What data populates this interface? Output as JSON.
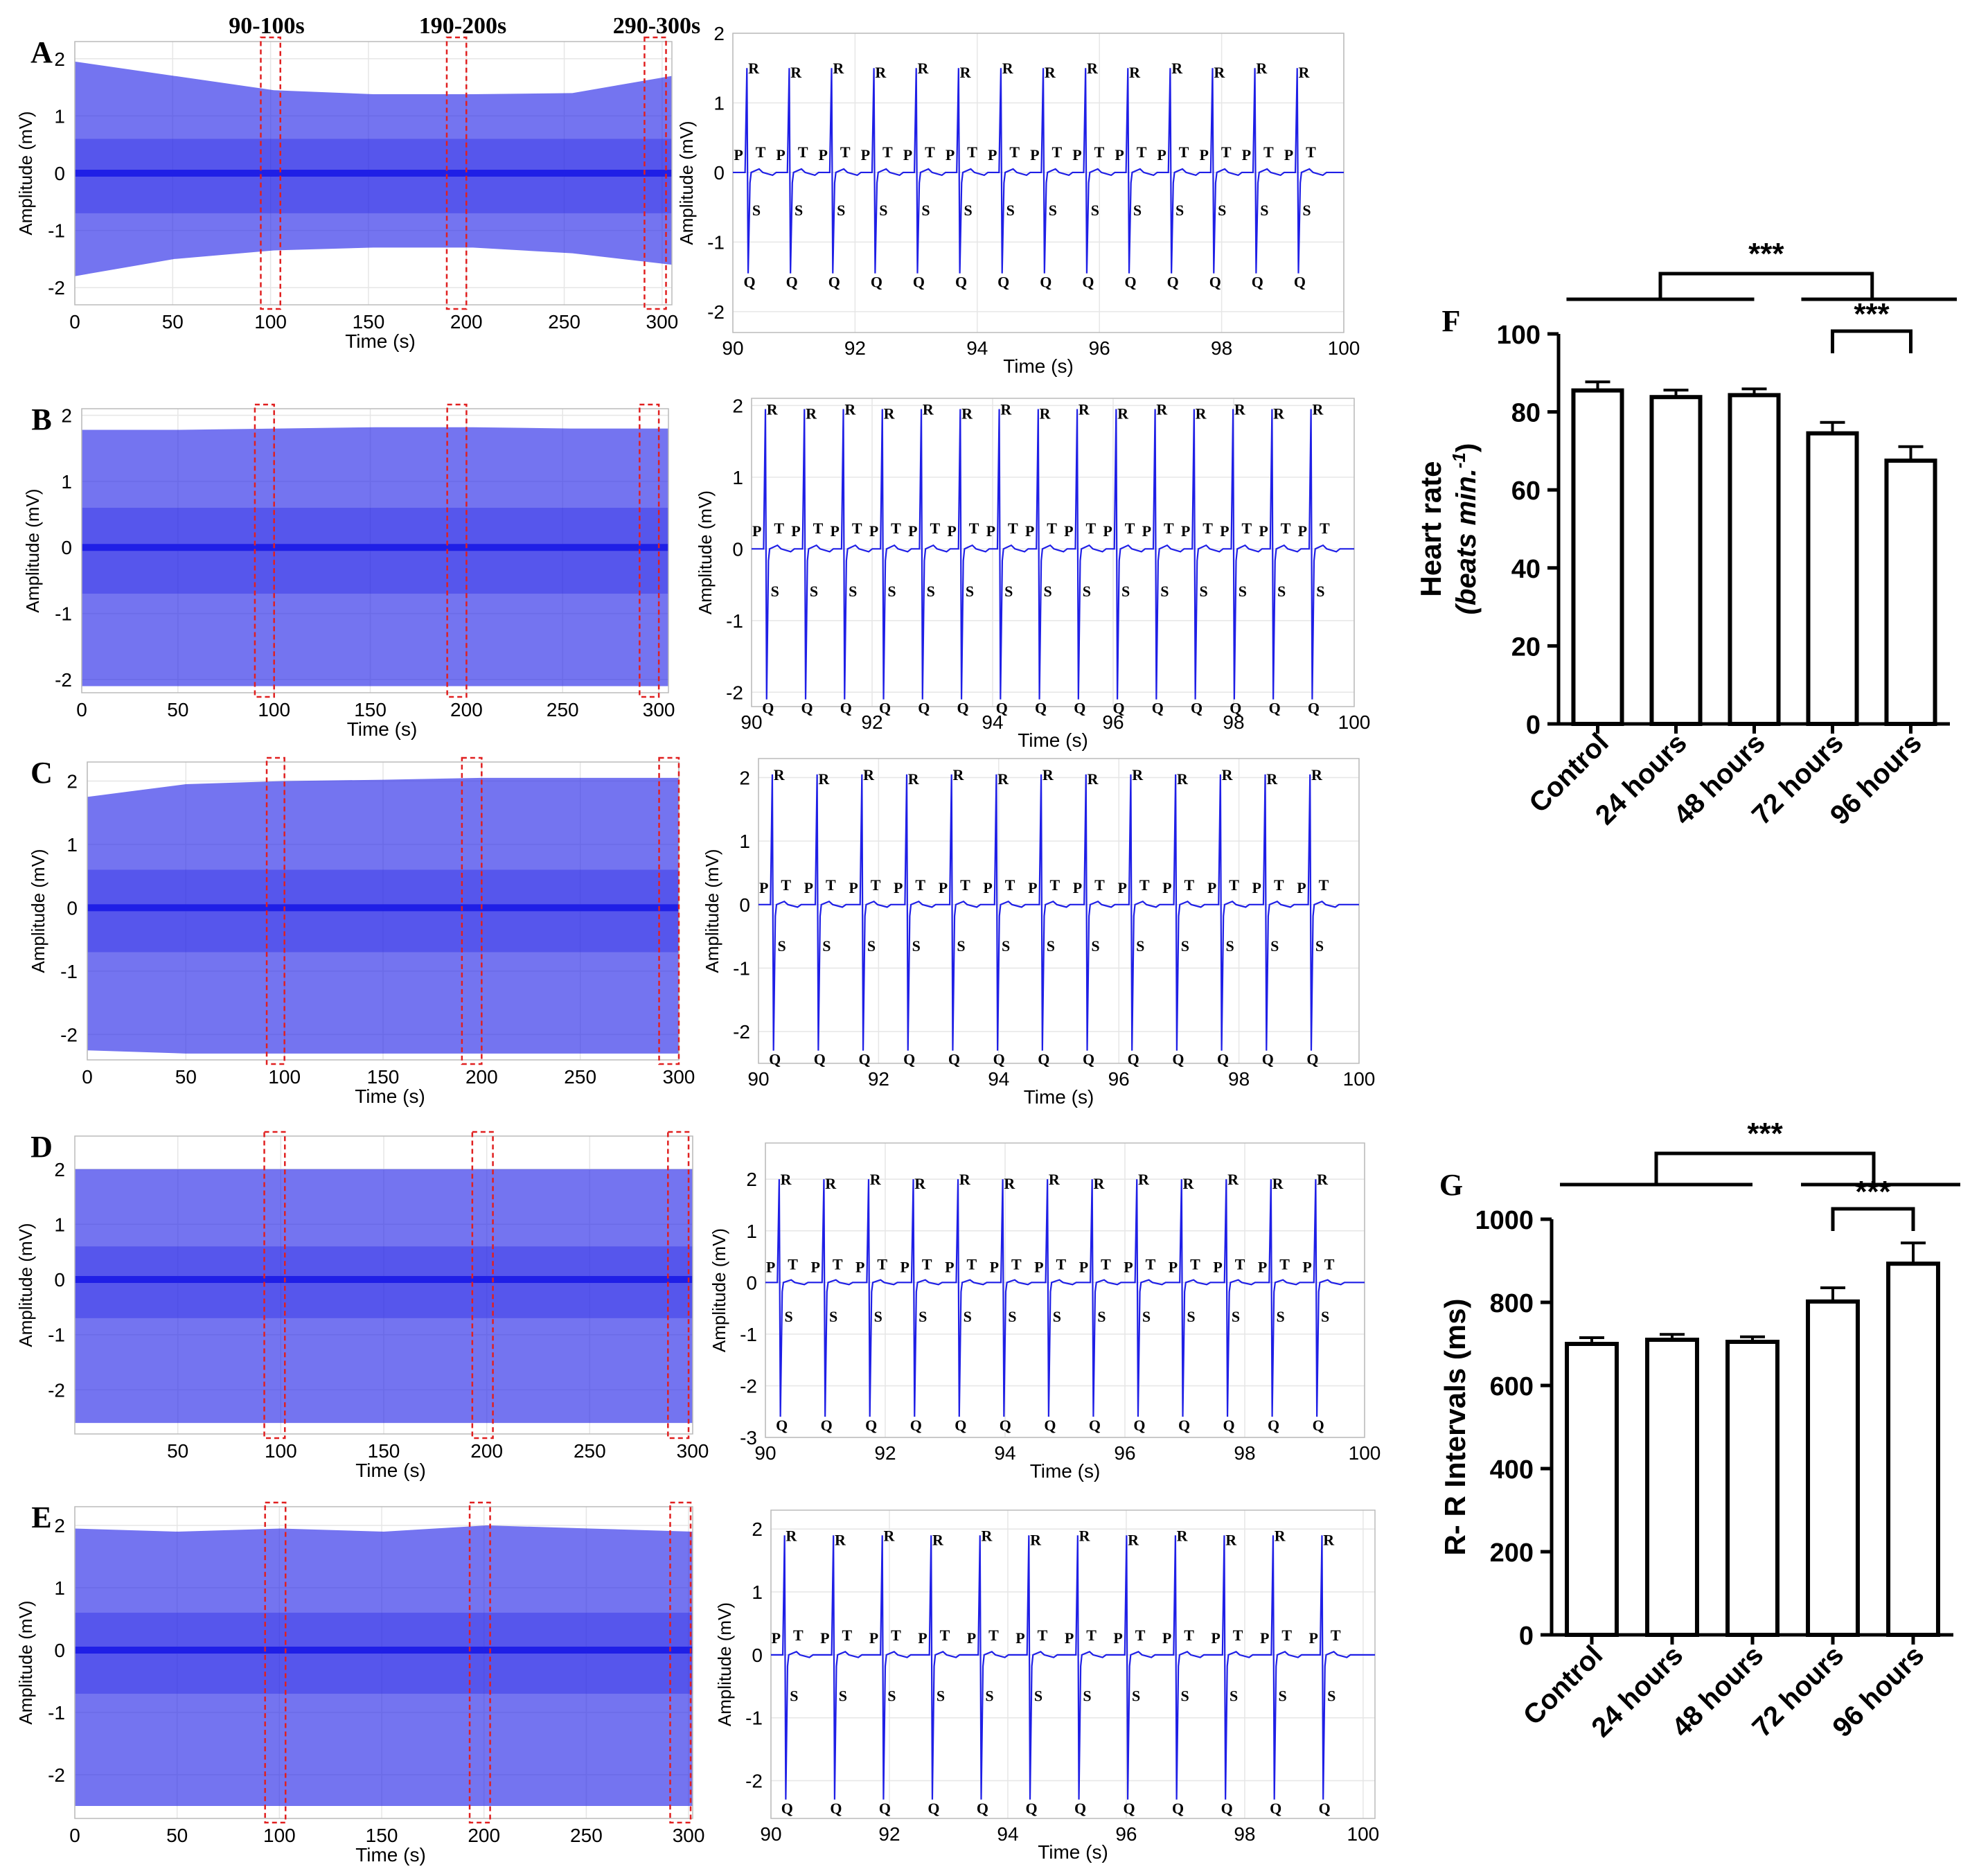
{
  "colors": {
    "signal": "#1f1fe6",
    "box": "#e02020",
    "axis": "#000000",
    "grid": "#e6e6e6"
  },
  "window_labels": [
    "90-100s",
    "190-200s",
    "290-300s"
  ],
  "ecg_panels": [
    {
      "letter": "A",
      "ylabel": "Amplitude (mV)",
      "xlabel": "Time (s)",
      "full": {
        "xlim": [
          0,
          305
        ],
        "ylim": [
          -2.3,
          2.3
        ],
        "xticks": [
          "0",
          "50",
          "100",
          "150",
          "200",
          "250",
          "300"
        ],
        "xtick_vals": [
          0,
          50,
          100,
          150,
          200,
          250,
          300
        ],
        "yticks": [
          "-2",
          "-1",
          "0",
          "1",
          "2"
        ],
        "ytick_vals": [
          -2,
          -1,
          0,
          1,
          2
        ],
        "envelope_top": [
          1.95,
          1.7,
          1.45,
          1.38,
          1.38,
          1.4,
          1.7
        ],
        "envelope_bottom": [
          -1.8,
          -1.5,
          -1.35,
          -1.3,
          -1.3,
          -1.4,
          -1.6
        ],
        "windows": [
          [
            95,
            105
          ],
          [
            190,
            200
          ],
          [
            291,
            302
          ]
        ]
      },
      "zoom": {
        "xlim": [
          90,
          100
        ],
        "ylim": [
          -2.3,
          2.0
        ],
        "xticks": [
          "90",
          "92",
          "94",
          "96",
          "98",
          "100"
        ],
        "xtick_vals": [
          90,
          92,
          94,
          96,
          98,
          100
        ],
        "yticks": [
          "-2",
          "-1",
          "0",
          "1",
          "2"
        ],
        "ytick_vals": [
          -2,
          -1,
          0,
          1,
          2
        ],
        "beats": 14,
        "r_amp": 1.5,
        "q_amp": -1.45,
        "s_amp": -0.5,
        "t_amp": 0.12
      }
    },
    {
      "letter": "B",
      "ylabel": "Amplitude (mV)",
      "xlabel": "Time (s)",
      "full": {
        "xlim": [
          0,
          305
        ],
        "ylim": [
          -2.2,
          2.1
        ],
        "xticks": [
          "0",
          "50",
          "100",
          "150",
          "200",
          "250",
          "300"
        ],
        "xtick_vals": [
          0,
          50,
          100,
          150,
          200,
          250,
          300
        ],
        "yticks": [
          "-2",
          "-1",
          "0",
          "1",
          "2"
        ],
        "ytick_vals": [
          -2,
          -1,
          0,
          1,
          2
        ],
        "envelope_top": [
          1.78,
          1.78,
          1.8,
          1.82,
          1.82,
          1.8,
          1.8
        ],
        "envelope_bottom": [
          -2.1,
          -2.1,
          -2.1,
          -2.1,
          -2.1,
          -2.1,
          -2.1
        ],
        "windows": [
          [
            90,
            100
          ],
          [
            190,
            200
          ],
          [
            290,
            300
          ]
        ]
      },
      "zoom": {
        "xlim": [
          90,
          100
        ],
        "ylim": [
          -2.2,
          2.1
        ],
        "xticks": [
          "90",
          "92",
          "94",
          "96",
          "98",
          "100"
        ],
        "xtick_vals": [
          90,
          92,
          94,
          96,
          98,
          100
        ],
        "yticks": [
          "-2",
          "-1",
          "0",
          "1",
          "2"
        ],
        "ytick_vals": [
          -2,
          -1,
          0,
          1,
          2
        ],
        "beats": 15,
        "r_amp": 1.95,
        "q_amp": -2.1,
        "s_amp": -0.55,
        "t_amp": 0.12
      }
    },
    {
      "letter": "C",
      "ylabel": "Amplitude (mV)",
      "xlabel": "Time (s)",
      "full": {
        "xlim": [
          0,
          300
        ],
        "ylim": [
          -2.4,
          2.3
        ],
        "xticks": [
          "0",
          "50",
          "100",
          "150",
          "200",
          "250",
          "300"
        ],
        "xtick_vals": [
          0,
          50,
          100,
          150,
          200,
          250,
          300
        ],
        "yticks": [
          "-2",
          "-1",
          "0",
          "1",
          "2"
        ],
        "ytick_vals": [
          -2,
          -1,
          0,
          1,
          2
        ],
        "envelope_top": [
          1.75,
          1.95,
          2.0,
          2.02,
          2.05,
          2.05,
          2.05
        ],
        "envelope_bottom": [
          -2.25,
          -2.3,
          -2.3,
          -2.3,
          -2.3,
          -2.3,
          -2.3
        ],
        "windows": [
          [
            91,
            100
          ],
          [
            190,
            200
          ],
          [
            290,
            300
          ]
        ]
      },
      "zoom": {
        "xlim": [
          90,
          100
        ],
        "ylim": [
          -2.5,
          2.3
        ],
        "xticks": [
          "90",
          "92",
          "94",
          "96",
          "98",
          "100"
        ],
        "xtick_vals": [
          90,
          92,
          94,
          96,
          98,
          100
        ],
        "yticks": [
          "-2",
          "-1",
          "0",
          "1",
          "2"
        ],
        "ytick_vals": [
          -2,
          -1,
          0,
          1,
          2
        ],
        "beats": 13,
        "r_amp": 2.05,
        "q_amp": -2.3,
        "s_amp": -0.6,
        "t_amp": 0.12
      }
    },
    {
      "letter": "D",
      "ylabel": "Amplitude (mV)",
      "xlabel": "Time (s)",
      "full": {
        "xlim": [
          0,
          300
        ],
        "ylim": [
          -2.8,
          2.6
        ],
        "xticks": [
          "50",
          "100",
          "150",
          "200",
          "250",
          "300"
        ],
        "xtick_vals": [
          50,
          100,
          150,
          200,
          250,
          300
        ],
        "yticks": [
          "-2",
          "-1",
          "0",
          "1",
          "2"
        ],
        "ytick_vals": [
          -2,
          -1,
          0,
          1,
          2
        ],
        "envelope_top": [
          2.0,
          2.0,
          2.0,
          2.0,
          2.0,
          2.0,
          2.0
        ],
        "envelope_bottom": [
          -2.6,
          -2.6,
          -2.6,
          -2.6,
          -2.6,
          -2.6,
          -2.6
        ],
        "windows": [
          [
            92,
            102
          ],
          [
            193,
            203
          ],
          [
            288,
            298
          ]
        ]
      },
      "zoom": {
        "xlim": [
          90,
          100
        ],
        "ylim": [
          -3.0,
          2.7
        ],
        "xticks": [
          "90",
          "92",
          "94",
          "96",
          "98",
          "100"
        ],
        "xtick_vals": [
          90,
          92,
          94,
          96,
          98,
          100
        ],
        "yticks": [
          "-3",
          "-2",
          "-1",
          "0",
          "1",
          "2"
        ],
        "ytick_vals": [
          -3,
          -2,
          -1,
          0,
          1,
          2
        ],
        "beats": 13,
        "r_amp": 2.0,
        "q_amp": -2.6,
        "s_amp": -0.6,
        "t_amp": 0.12
      }
    },
    {
      "letter": "E",
      "ylabel": "Amplitude (mV)",
      "xlabel": "Time (s)",
      "full": {
        "xlim": [
          0,
          302
        ],
        "ylim": [
          -2.7,
          2.3
        ],
        "xticks": [
          "0",
          "50",
          "100",
          "150",
          "200",
          "250",
          "300"
        ],
        "xtick_vals": [
          0,
          50,
          100,
          150,
          200,
          250,
          300
        ],
        "yticks": [
          "-2",
          "-1",
          "0",
          "1",
          "2"
        ],
        "ytick_vals": [
          -2,
          -1,
          0,
          1,
          2
        ],
        "envelope_top": [
          1.95,
          1.9,
          1.95,
          1.9,
          2.0,
          1.95,
          1.9
        ],
        "envelope_bottom": [
          -2.5,
          -2.5,
          -2.5,
          -2.5,
          -2.5,
          -2.5,
          -2.5
        ],
        "windows": [
          [
            93,
            103
          ],
          [
            193,
            203
          ],
          [
            291,
            301
          ]
        ]
      },
      "zoom": {
        "xlim": [
          90,
          100.2
        ],
        "ylim": [
          -2.6,
          2.3
        ],
        "xticks": [
          "90",
          "92",
          "94",
          "96",
          "98",
          "100"
        ],
        "xtick_vals": [
          90,
          92,
          94,
          96,
          98,
          100
        ],
        "yticks": [
          "-2",
          "-1",
          "0",
          "1",
          "2"
        ],
        "ytick_vals": [
          -2,
          -1,
          0,
          1,
          2
        ],
        "beats": 12,
        "r_amp": 1.9,
        "q_amp": -2.3,
        "s_amp": -0.6,
        "t_amp": 0.12
      }
    }
  ],
  "wave_labels": {
    "r": "R",
    "q": "Q",
    "s": "S",
    "t": "T",
    "p": "P"
  },
  "chart_data": [
    {
      "type": "bar",
      "panel": "F",
      "categories": [
        "Control",
        "24 hours",
        "48 hours",
        "72 hours",
        "96 hours"
      ],
      "values": [
        85.5,
        83.8,
        84.3,
        74.5,
        67.5
      ],
      "errors": [
        2.2,
        1.8,
        1.6,
        2.8,
        3.6
      ],
      "ylim": [
        0,
        100
      ],
      "yticks": [
        "0",
        "20",
        "40",
        "60",
        "80",
        "100"
      ],
      "ytick_vals": [
        0,
        20,
        40,
        60,
        80,
        100
      ],
      "ylabel_line1": "Heart rate",
      "ylabel_line2": "(beats min.",
      "ylabel_sup": "-1",
      "ylabel_close": ")",
      "sig_main": "***",
      "sig_sub": "***"
    },
    {
      "type": "bar",
      "panel": "G",
      "categories": [
        "Control",
        "24 hours",
        "48 hours",
        "72 hours",
        "96 hours"
      ],
      "values": [
        700,
        710,
        705,
        802,
        893
      ],
      "errors": [
        15,
        13,
        12,
        33,
        50
      ],
      "ylim": [
        0,
        1000
      ],
      "yticks": [
        "0",
        "200",
        "400",
        "600",
        "800",
        "1000"
      ],
      "ytick_vals": [
        0,
        200,
        400,
        600,
        800,
        1000
      ],
      "ylabel": "R- R Intervals (ms)",
      "sig_main": "***",
      "sig_sub": "***"
    }
  ]
}
